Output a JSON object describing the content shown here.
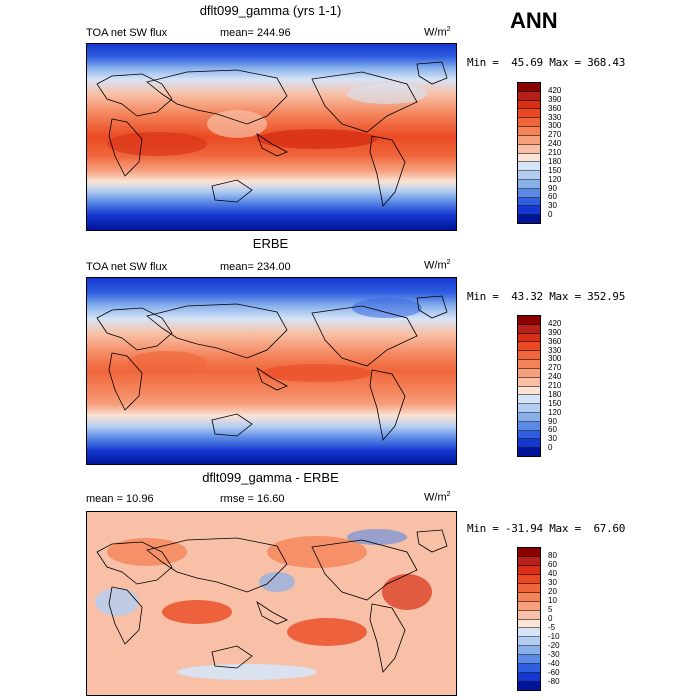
{
  "season_label": "ANN",
  "panels": [
    {
      "title": "dflt099_gamma (yrs 1-1)",
      "left_label": "TOA net SW flux",
      "stat_label": "mean= 244.96",
      "units": "W/m",
      "units_exp": "2",
      "minmax": "Min =  45.69 Max = 368.43",
      "colorbar": {
        "labels": [
          "420",
          "390",
          "360",
          "330",
          "300",
          "270",
          "240",
          "210",
          "180",
          "150",
          "120",
          "90",
          "60",
          "30",
          "0"
        ],
        "colors": [
          "#8b0000",
          "#b5201a",
          "#d73016",
          "#ea4a23",
          "#f0663c",
          "#f4835a",
          "#f6a07e",
          "#f8c0a6",
          "#fbe3d6",
          "#d6e4f7",
          "#b3cdf2",
          "#88b1ec",
          "#5a8ae6",
          "#2f5fe0",
          "#1437d0",
          "#00159a"
        ]
      }
    },
    {
      "title": "ERBE",
      "left_label": "TOA net SW flux",
      "stat_label": "mean= 234.00",
      "units": "W/m",
      "units_exp": "2",
      "minmax": "Min =  43.32 Max = 352.95",
      "colorbar": {
        "labels": [
          "420",
          "390",
          "360",
          "330",
          "300",
          "270",
          "240",
          "210",
          "180",
          "150",
          "120",
          "90",
          "60",
          "30",
          "0"
        ],
        "colors": [
          "#8b0000",
          "#b5201a",
          "#d73016",
          "#ea4a23",
          "#f0663c",
          "#f4835a",
          "#f6a07e",
          "#f8c0a6",
          "#fbe3d6",
          "#d6e4f7",
          "#b3cdf2",
          "#88b1ec",
          "#5a8ae6",
          "#2f5fe0",
          "#1437d0",
          "#00159a"
        ]
      }
    },
    {
      "title": "dflt099_gamma - ERBE",
      "left_label": "mean =  10.96",
      "stat_label": "rmse =  16.60",
      "units": "W/m",
      "units_exp": "2",
      "minmax": "Min = -31.94 Max =  67.60",
      "colorbar": {
        "labels": [
          "80",
          "60",
          "40",
          "30",
          "20",
          "10",
          "5",
          "0",
          "-5",
          "-10",
          "-20",
          "-30",
          "-40",
          "-60",
          "-80"
        ],
        "colors": [
          "#8b0000",
          "#b5201a",
          "#d73016",
          "#ea4a23",
          "#f0663c",
          "#f4835a",
          "#f6a07e",
          "#f8c0a6",
          "#fbe3d6",
          "#d6e4f7",
          "#b3cdf2",
          "#88b1ec",
          "#5a8ae6",
          "#2f5fe0",
          "#1437d0",
          "#00159a"
        ]
      }
    }
  ]
}
